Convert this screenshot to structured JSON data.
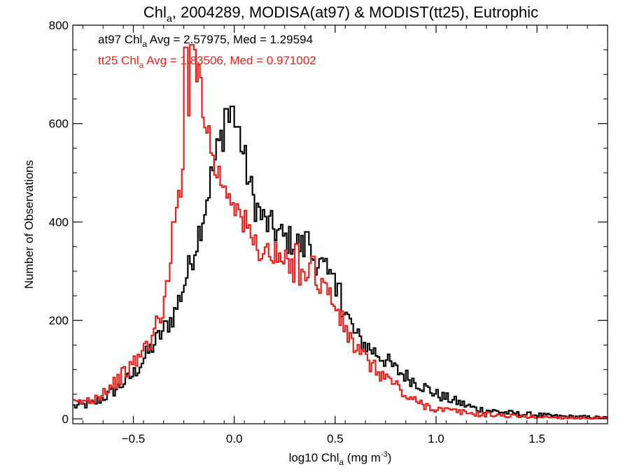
{
  "chart_data": {
    "type": "line",
    "title": {
      "pre": "Chl",
      "sub": "a",
      "post": ", 2004289, MODISA(at97) & MODIST(tt25), Eutrophic"
    },
    "xlabel": {
      "pre": "log10 Chl",
      "sub": "a",
      "post": " (mg m",
      "sup": "-3",
      "close": ")"
    },
    "ylabel": "Number of Observations",
    "xlim": [
      -0.8,
      1.85
    ],
    "ylim": [
      -10,
      800
    ],
    "xticks": [
      -0.5,
      0.0,
      0.5,
      1.0,
      1.5
    ],
    "xtick_labels": [
      "−0.5",
      "0.0",
      "0.5",
      "1.0",
      "1.5"
    ],
    "yticks": [
      0,
      200,
      400,
      600,
      800
    ],
    "ytick_labels": [
      "0",
      "200",
      "400",
      "600",
      "800"
    ],
    "grid": false,
    "annotations": [
      {
        "color": "#000000",
        "pre": "at97 Chl",
        "sub": "a",
        "post": " Avg = 2.57975, Med = 1.29594"
      },
      {
        "color": "#e8211c",
        "pre": "tt25 Chl",
        "sub": "a",
        "post": " Avg = 1.83506, Med = 0.971002"
      }
    ],
    "series": [
      {
        "id": "at97",
        "color": "#000000",
        "points": [
          [
            -0.8,
            25
          ],
          [
            -0.7,
            30
          ],
          [
            -0.6,
            55
          ],
          [
            -0.5,
            90
          ],
          [
            -0.4,
            150
          ],
          [
            -0.3,
            210
          ],
          [
            -0.25,
            270
          ],
          [
            -0.2,
            340
          ],
          [
            -0.15,
            420
          ],
          [
            -0.12,
            480
          ],
          [
            -0.08,
            550
          ],
          [
            -0.05,
            590
          ],
          [
            -0.02,
            600
          ],
          [
            0.0,
            600
          ],
          [
            0.02,
            590
          ],
          [
            0.05,
            530
          ],
          [
            0.08,
            470
          ],
          [
            0.1,
            440
          ],
          [
            0.15,
            400
          ],
          [
            0.2,
            385
          ],
          [
            0.25,
            365
          ],
          [
            0.3,
            360
          ],
          [
            0.35,
            345
          ],
          [
            0.4,
            325
          ],
          [
            0.45,
            300
          ],
          [
            0.5,
            265
          ],
          [
            0.55,
            220
          ],
          [
            0.6,
            170
          ],
          [
            0.65,
            150
          ],
          [
            0.7,
            135
          ],
          [
            0.75,
            120
          ],
          [
            0.8,
            100
          ],
          [
            0.9,
            75
          ],
          [
            1.0,
            50
          ],
          [
            1.1,
            35
          ],
          [
            1.2,
            20
          ],
          [
            1.3,
            15
          ],
          [
            1.4,
            10
          ],
          [
            1.5,
            8
          ],
          [
            1.6,
            5
          ],
          [
            1.7,
            4
          ],
          [
            1.85,
            2
          ]
        ],
        "spikes": [
          [
            -0.04,
            630
          ],
          [
            -0.01,
            635
          ],
          [
            0.36,
            380
          ],
          [
            0.49,
            295
          ],
          [
            0.52,
            275
          ]
        ]
      },
      {
        "id": "tt25",
        "color": "#e8211c",
        "points": [
          [
            -0.8,
            30
          ],
          [
            -0.7,
            40
          ],
          [
            -0.6,
            70
          ],
          [
            -0.5,
            110
          ],
          [
            -0.45,
            140
          ],
          [
            -0.4,
            170
          ],
          [
            -0.35,
            230
          ],
          [
            -0.32,
            290
          ],
          [
            -0.3,
            360
          ],
          [
            -0.28,
            430
          ],
          [
            -0.25,
            540
          ],
          [
            -0.23,
            640
          ],
          [
            -0.21,
            700
          ],
          [
            -0.19,
            710
          ],
          [
            -0.17,
            700
          ],
          [
            -0.15,
            640
          ],
          [
            -0.12,
            560
          ],
          [
            -0.1,
            520
          ],
          [
            -0.07,
            490
          ],
          [
            -0.05,
            475
          ],
          [
            -0.02,
            460
          ],
          [
            0.0,
            450
          ],
          [
            0.02,
            420
          ],
          [
            0.05,
            395
          ],
          [
            0.08,
            375
          ],
          [
            0.1,
            355
          ],
          [
            0.15,
            340
          ],
          [
            0.2,
            330
          ],
          [
            0.25,
            315
          ],
          [
            0.3,
            300
          ],
          [
            0.35,
            300
          ],
          [
            0.4,
            285
          ],
          [
            0.45,
            270
          ],
          [
            0.5,
            230
          ],
          [
            0.55,
            180
          ],
          [
            0.6,
            145
          ],
          [
            0.65,
            120
          ],
          [
            0.7,
            100
          ],
          [
            0.75,
            85
          ],
          [
            0.8,
            70
          ],
          [
            0.85,
            45
          ],
          [
            0.9,
            35
          ],
          [
            1.0,
            20
          ],
          [
            1.1,
            15
          ],
          [
            1.2,
            10
          ],
          [
            1.3,
            8
          ],
          [
            1.4,
            5
          ],
          [
            1.5,
            4
          ],
          [
            1.6,
            3
          ],
          [
            1.7,
            2
          ],
          [
            1.85,
            1
          ]
        ],
        "spikes": [
          [
            -0.24,
            755
          ],
          [
            -0.21,
            760
          ],
          [
            -0.3,
            400
          ],
          [
            0.31,
            355
          ],
          [
            0.39,
            330
          ]
        ]
      }
    ]
  }
}
